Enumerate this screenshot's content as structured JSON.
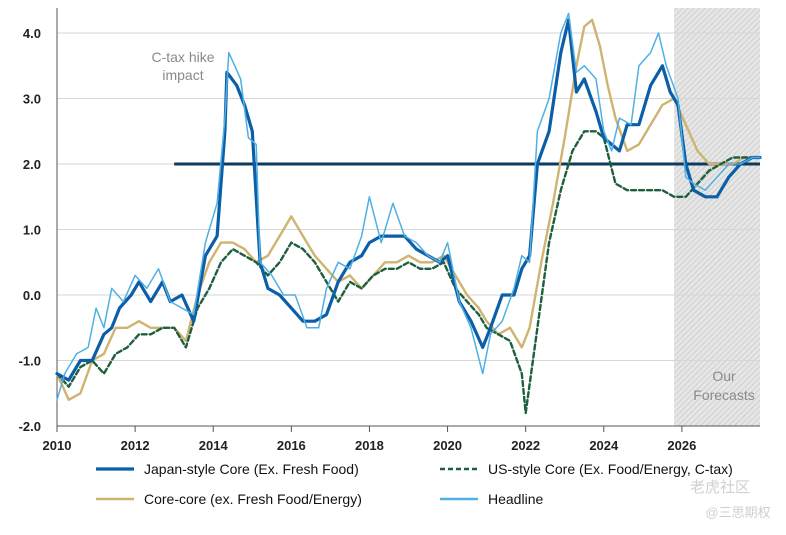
{
  "chart_data": {
    "type": "line",
    "title": "",
    "xlabel": "",
    "ylabel": "",
    "xlim": [
      2010,
      2028
    ],
    "ylim": [
      -2.0,
      4.3
    ],
    "x_ticks": [
      2010,
      2012,
      2014,
      2016,
      2018,
      2020,
      2022,
      2024,
      2026
    ],
    "x_tick_labels": [
      "2010",
      "2012",
      "2014",
      "2016",
      "2018",
      "2020",
      "2022",
      "2024",
      "2026"
    ],
    "y_ticks": [
      -2.0,
      -1.0,
      0.0,
      1.0,
      2.0,
      3.0,
      4.0
    ],
    "y_tick_labels": [
      "-2.0",
      "-1.0",
      "0.0",
      "1.0",
      "2.0",
      "3.0",
      "4.0"
    ],
    "grid": "horizontal",
    "target_line": {
      "value": 2.0,
      "x_start": 2013.0,
      "x_end": 2028.0
    },
    "forecast_region": {
      "x_start": 2025.8,
      "x_end": 2028.0,
      "label_line1": "Our",
      "label_line2": "Forecasts"
    },
    "annotation": {
      "line1": "C-tax hike",
      "line2": "impact"
    },
    "legend_position": "bottom",
    "series": [
      {
        "name": "Japan-style Core (Ex. Fresh Food)",
        "color": "#0b5ea8",
        "style": "solid",
        "width": 3.2,
        "points": [
          [
            2010.0,
            -1.2
          ],
          [
            2010.3,
            -1.3
          ],
          [
            2010.6,
            -1.0
          ],
          [
            2010.9,
            -1.0
          ],
          [
            2011.2,
            -0.6
          ],
          [
            2011.4,
            -0.5
          ],
          [
            2011.6,
            -0.2
          ],
          [
            2011.9,
            0.0
          ],
          [
            2012.1,
            0.2
          ],
          [
            2012.4,
            -0.1
          ],
          [
            2012.7,
            0.2
          ],
          [
            2012.9,
            -0.1
          ],
          [
            2013.2,
            0.0
          ],
          [
            2013.5,
            -0.4
          ],
          [
            2013.8,
            0.6
          ],
          [
            2014.1,
            0.9
          ],
          [
            2014.3,
            2.5
          ],
          [
            2014.35,
            3.4
          ],
          [
            2014.6,
            3.2
          ],
          [
            2014.8,
            2.9
          ],
          [
            2015.0,
            2.5
          ],
          [
            2015.15,
            1.0
          ],
          [
            2015.2,
            0.5
          ],
          [
            2015.4,
            0.1
          ],
          [
            2015.7,
            0.0
          ],
          [
            2016.0,
            -0.2
          ],
          [
            2016.3,
            -0.4
          ],
          [
            2016.6,
            -0.4
          ],
          [
            2016.9,
            -0.3
          ],
          [
            2017.2,
            0.2
          ],
          [
            2017.5,
            0.5
          ],
          [
            2017.8,
            0.6
          ],
          [
            2018.0,
            0.8
          ],
          [
            2018.3,
            0.9
          ],
          [
            2018.6,
            0.9
          ],
          [
            2018.9,
            0.9
          ],
          [
            2019.2,
            0.7
          ],
          [
            2019.5,
            0.6
          ],
          [
            2019.8,
            0.5
          ],
          [
            2020.0,
            0.6
          ],
          [
            2020.3,
            -0.1
          ],
          [
            2020.6,
            -0.4
          ],
          [
            2020.9,
            -0.8
          ],
          [
            2021.1,
            -0.5
          ],
          [
            2021.4,
            0.0
          ],
          [
            2021.7,
            0.0
          ],
          [
            2021.9,
            0.4
          ],
          [
            2022.1,
            0.6
          ],
          [
            2022.3,
            2.0
          ],
          [
            2022.6,
            2.5
          ],
          [
            2022.9,
            3.7
          ],
          [
            2023.1,
            4.2
          ],
          [
            2023.3,
            3.1
          ],
          [
            2023.5,
            3.3
          ],
          [
            2023.8,
            2.8
          ],
          [
            2024.0,
            2.4
          ],
          [
            2024.2,
            2.3
          ],
          [
            2024.4,
            2.2
          ],
          [
            2024.6,
            2.6
          ],
          [
            2024.9,
            2.6
          ],
          [
            2025.2,
            3.2
          ],
          [
            2025.5,
            3.5
          ],
          [
            2025.7,
            3.1
          ],
          [
            2025.9,
            2.9
          ],
          [
            2026.1,
            2.0
          ],
          [
            2026.3,
            1.6
          ],
          [
            2026.6,
            1.5
          ],
          [
            2026.9,
            1.5
          ],
          [
            2027.2,
            1.8
          ],
          [
            2027.5,
            2.0
          ],
          [
            2027.8,
            2.1
          ],
          [
            2028.0,
            2.1
          ]
        ]
      },
      {
        "name": "US-style Core (Ex. Food/Energy, C-tax)",
        "color": "#1e5f3e",
        "style": "dashed",
        "width": 2.4,
        "points": [
          [
            2010.0,
            -1.2
          ],
          [
            2010.3,
            -1.4
          ],
          [
            2010.6,
            -1.1
          ],
          [
            2010.9,
            -1.0
          ],
          [
            2011.2,
            -1.2
          ],
          [
            2011.5,
            -0.9
          ],
          [
            2011.8,
            -0.8
          ],
          [
            2012.1,
            -0.6
          ],
          [
            2012.4,
            -0.6
          ],
          [
            2012.7,
            -0.5
          ],
          [
            2013.0,
            -0.5
          ],
          [
            2013.3,
            -0.8
          ],
          [
            2013.6,
            -0.2
          ],
          [
            2013.9,
            0.1
          ],
          [
            2014.2,
            0.5
          ],
          [
            2014.5,
            0.7
          ],
          [
            2014.8,
            0.6
          ],
          [
            2015.1,
            0.5
          ],
          [
            2015.4,
            0.3
          ],
          [
            2015.7,
            0.5
          ],
          [
            2016.0,
            0.8
          ],
          [
            2016.3,
            0.7
          ],
          [
            2016.6,
            0.5
          ],
          [
            2016.9,
            0.2
          ],
          [
            2017.2,
            -0.1
          ],
          [
            2017.5,
            0.2
          ],
          [
            2017.8,
            0.1
          ],
          [
            2018.1,
            0.3
          ],
          [
            2018.4,
            0.4
          ],
          [
            2018.7,
            0.4
          ],
          [
            2019.0,
            0.5
          ],
          [
            2019.3,
            0.4
          ],
          [
            2019.6,
            0.4
          ],
          [
            2019.9,
            0.5
          ],
          [
            2020.2,
            0.1
          ],
          [
            2020.5,
            -0.1
          ],
          [
            2020.8,
            -0.3
          ],
          [
            2021.0,
            -0.5
          ],
          [
            2021.3,
            -0.6
          ],
          [
            2021.6,
            -0.7
          ],
          [
            2021.9,
            -1.2
          ],
          [
            2022.0,
            -1.8
          ],
          [
            2022.3,
            -0.5
          ],
          [
            2022.6,
            0.8
          ],
          [
            2022.9,
            1.6
          ],
          [
            2023.2,
            2.2
          ],
          [
            2023.5,
            2.5
          ],
          [
            2023.8,
            2.5
          ],
          [
            2024.0,
            2.4
          ],
          [
            2024.3,
            1.7
          ],
          [
            2024.6,
            1.6
          ],
          [
            2024.9,
            1.6
          ],
          [
            2025.2,
            1.6
          ],
          [
            2025.5,
            1.6
          ],
          [
            2025.8,
            1.5
          ],
          [
            2026.1,
            1.5
          ],
          [
            2026.4,
            1.7
          ],
          [
            2026.7,
            1.9
          ],
          [
            2027.0,
            2.0
          ],
          [
            2027.3,
            2.1
          ],
          [
            2027.6,
            2.1
          ],
          [
            2028.0,
            2.1
          ]
        ]
      },
      {
        "name": "Core-core (ex. Fresh Food/Energy)",
        "color": "#cfb370",
        "style": "solid",
        "width": 2.4,
        "points": [
          [
            2010.0,
            -1.2
          ],
          [
            2010.3,
            -1.6
          ],
          [
            2010.6,
            -1.5
          ],
          [
            2010.9,
            -1.0
          ],
          [
            2011.2,
            -0.9
          ],
          [
            2011.5,
            -0.5
          ],
          [
            2011.8,
            -0.5
          ],
          [
            2012.1,
            -0.4
          ],
          [
            2012.4,
            -0.5
          ],
          [
            2012.7,
            -0.5
          ],
          [
            2013.0,
            -0.5
          ],
          [
            2013.3,
            -0.7
          ],
          [
            2013.6,
            0.0
          ],
          [
            2013.9,
            0.5
          ],
          [
            2014.2,
            0.8
          ],
          [
            2014.5,
            0.8
          ],
          [
            2014.8,
            0.7
          ],
          [
            2015.1,
            0.5
          ],
          [
            2015.4,
            0.6
          ],
          [
            2015.7,
            0.9
          ],
          [
            2016.0,
            1.2
          ],
          [
            2016.3,
            0.9
          ],
          [
            2016.6,
            0.6
          ],
          [
            2016.9,
            0.4
          ],
          [
            2017.2,
            0.2
          ],
          [
            2017.5,
            0.3
          ],
          [
            2017.8,
            0.1
          ],
          [
            2018.1,
            0.3
          ],
          [
            2018.4,
            0.5
          ],
          [
            2018.7,
            0.5
          ],
          [
            2019.0,
            0.6
          ],
          [
            2019.3,
            0.5
          ],
          [
            2019.6,
            0.5
          ],
          [
            2019.9,
            0.6
          ],
          [
            2020.2,
            0.3
          ],
          [
            2020.5,
            0.0
          ],
          [
            2020.8,
            -0.2
          ],
          [
            2021.0,
            -0.4
          ],
          [
            2021.3,
            -0.6
          ],
          [
            2021.6,
            -0.5
          ],
          [
            2021.9,
            -0.8
          ],
          [
            2022.1,
            -0.5
          ],
          [
            2022.4,
            0.5
          ],
          [
            2022.7,
            1.4
          ],
          [
            2023.0,
            2.4
          ],
          [
            2023.3,
            3.5
          ],
          [
            2023.5,
            4.1
          ],
          [
            2023.7,
            4.2
          ],
          [
            2023.9,
            3.8
          ],
          [
            2024.1,
            3.2
          ],
          [
            2024.3,
            2.7
          ],
          [
            2024.6,
            2.2
          ],
          [
            2024.9,
            2.3
          ],
          [
            2025.2,
            2.6
          ],
          [
            2025.5,
            2.9
          ],
          [
            2025.8,
            3.0
          ],
          [
            2026.1,
            2.6
          ],
          [
            2026.4,
            2.2
          ],
          [
            2026.7,
            2.0
          ],
          [
            2027.0,
            2.0
          ],
          [
            2027.3,
            2.0
          ],
          [
            2027.6,
            2.1
          ],
          [
            2028.0,
            2.1
          ]
        ]
      },
      {
        "name": "Headline",
        "color": "#4fb0e3",
        "style": "solid",
        "width": 1.5,
        "points": [
          [
            2010.0,
            -1.6
          ],
          [
            2010.2,
            -1.2
          ],
          [
            2010.5,
            -0.9
          ],
          [
            2010.8,
            -0.8
          ],
          [
            2011.0,
            -0.2
          ],
          [
            2011.2,
            -0.5
          ],
          [
            2011.4,
            0.1
          ],
          [
            2011.7,
            -0.1
          ],
          [
            2012.0,
            0.3
          ],
          [
            2012.3,
            0.1
          ],
          [
            2012.6,
            0.4
          ],
          [
            2012.9,
            -0.1
          ],
          [
            2013.2,
            -0.2
          ],
          [
            2013.5,
            -0.3
          ],
          [
            2013.8,
            0.8
          ],
          [
            2014.1,
            1.4
          ],
          [
            2014.3,
            2.7
          ],
          [
            2014.4,
            3.7
          ],
          [
            2014.7,
            3.3
          ],
          [
            2014.9,
            2.4
          ],
          [
            2015.1,
            2.3
          ],
          [
            2015.2,
            0.5
          ],
          [
            2015.5,
            0.3
          ],
          [
            2015.8,
            0.0
          ],
          [
            2016.1,
            0.0
          ],
          [
            2016.4,
            -0.5
          ],
          [
            2016.7,
            -0.5
          ],
          [
            2016.9,
            0.1
          ],
          [
            2017.2,
            0.5
          ],
          [
            2017.5,
            0.4
          ],
          [
            2017.8,
            0.9
          ],
          [
            2018.0,
            1.5
          ],
          [
            2018.3,
            0.8
          ],
          [
            2018.6,
            1.4
          ],
          [
            2018.9,
            0.9
          ],
          [
            2019.2,
            0.8
          ],
          [
            2019.5,
            0.6
          ],
          [
            2019.8,
            0.5
          ],
          [
            2020.0,
            0.8
          ],
          [
            2020.3,
            -0.1
          ],
          [
            2020.6,
            -0.5
          ],
          [
            2020.9,
            -1.2
          ],
          [
            2021.1,
            -0.6
          ],
          [
            2021.4,
            -0.4
          ],
          [
            2021.7,
            0.1
          ],
          [
            2021.9,
            0.6
          ],
          [
            2022.1,
            0.5
          ],
          [
            2022.3,
            2.5
          ],
          [
            2022.6,
            3.0
          ],
          [
            2022.9,
            4.0
          ],
          [
            2023.1,
            4.3
          ],
          [
            2023.3,
            3.4
          ],
          [
            2023.5,
            3.5
          ],
          [
            2023.8,
            3.3
          ],
          [
            2024.0,
            2.5
          ],
          [
            2024.2,
            2.2
          ],
          [
            2024.4,
            2.7
          ],
          [
            2024.7,
            2.6
          ],
          [
            2024.9,
            3.5
          ],
          [
            2025.2,
            3.7
          ],
          [
            2025.4,
            4.0
          ],
          [
            2025.6,
            3.5
          ],
          [
            2025.9,
            3.0
          ],
          [
            2026.1,
            1.8
          ],
          [
            2026.3,
            1.7
          ],
          [
            2026.6,
            1.6
          ],
          [
            2026.9,
            1.8
          ],
          [
            2027.2,
            2.0
          ],
          [
            2027.5,
            2.0
          ],
          [
            2027.8,
            2.1
          ],
          [
            2028.0,
            2.1
          ]
        ]
      }
    ]
  },
  "watermark": {
    "line1": "老虎社区",
    "line2": "@三思期权"
  }
}
